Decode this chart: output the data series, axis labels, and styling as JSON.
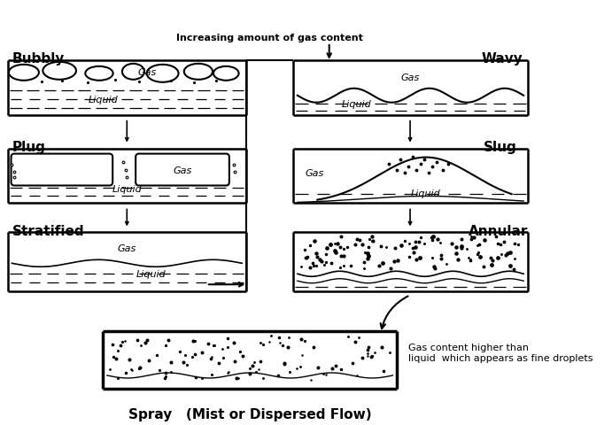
{
  "title": "Spray   (Mist or Dispersed Flow)",
  "bg_color": "#ffffff",
  "line_color": "#000000",
  "top_label": "Increasing amount of gas content",
  "spray_note": "Gas content higher than\nliquid  which appears as fine droplets",
  "fig_width": 6.91,
  "fig_height": 4.8,
  "dpi": 100
}
